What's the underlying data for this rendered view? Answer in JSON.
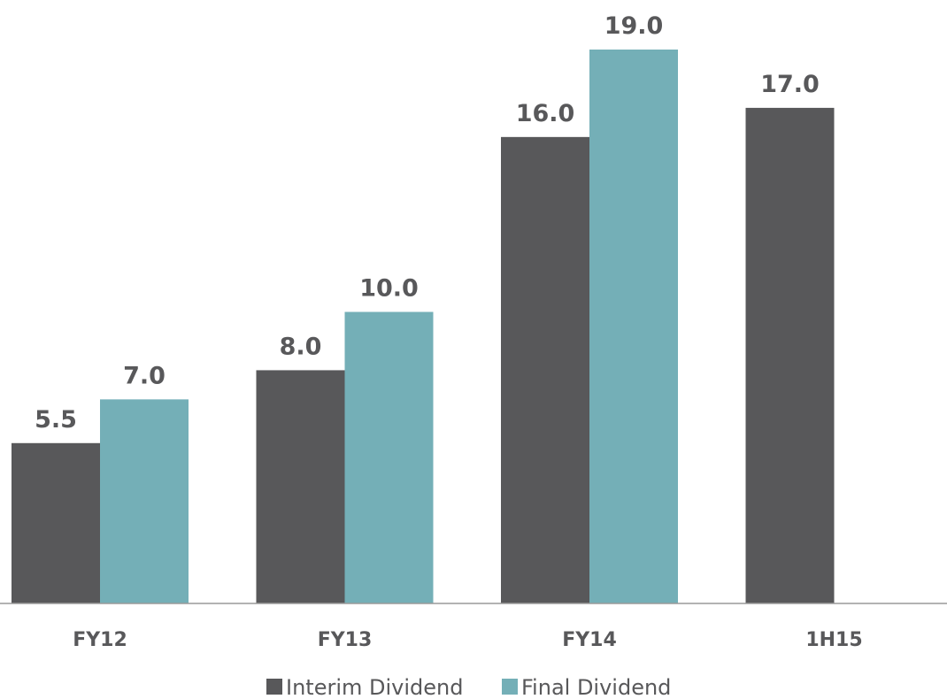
{
  "chart_data": {
    "type": "bar",
    "title": "",
    "xlabel": "",
    "ylabel": "",
    "categories": [
      "FY12",
      "FY13",
      "FY14",
      "1H15"
    ],
    "series": [
      {
        "name": "Interim Dividend",
        "color": "#58585a",
        "values": [
          5.5,
          8.0,
          16.0,
          17.0
        ],
        "labels": [
          "5.5",
          "8.0",
          "16.0",
          "17.0"
        ]
      },
      {
        "name": "Final Dividend",
        "color": "#74afb7",
        "values": [
          7.0,
          10.0,
          19.0,
          null
        ],
        "labels": [
          "7.0",
          "10.0",
          "19.0",
          ""
        ]
      }
    ],
    "ylim": [
      0,
      19.0
    ],
    "grid": false,
    "legend_position": "bottom-center"
  }
}
